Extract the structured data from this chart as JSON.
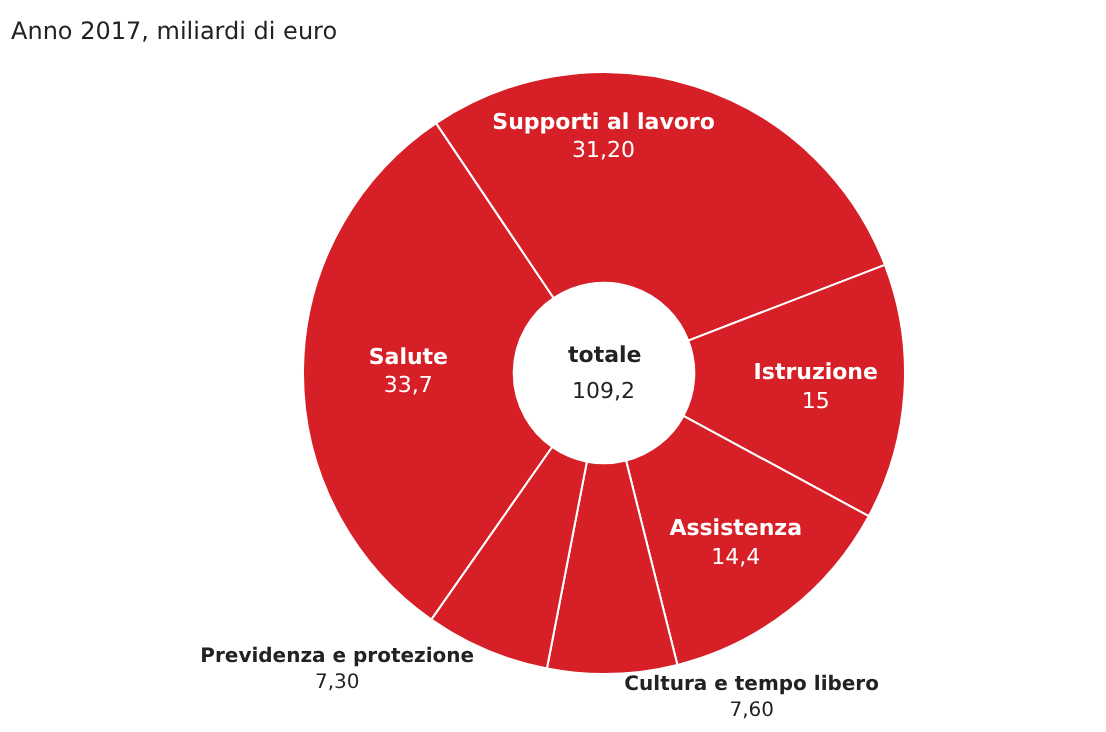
{
  "chart_data": {
    "type": "donut",
    "title": "Anno 2017, miliardi di euro",
    "categories": [
      "Salute",
      "Supporti al lavoro",
      "Istruzione",
      "Assistenza",
      "Cultura e tempo libero",
      "Previdenza e protezione"
    ],
    "values": [
      33.7,
      31.2,
      15,
      14.4,
      7.6,
      7.3
    ],
    "value_labels": [
      "33,7",
      "31,20",
      "15",
      "14,4",
      "7,60",
      "7,30"
    ],
    "colors": [
      "#d61f26",
      "#d61f26",
      "#d61f26",
      "#d61f26",
      "#d61f26",
      "#d61f26"
    ],
    "annotations": [
      "totale",
      "109,2"
    ],
    "legend": false
  }
}
